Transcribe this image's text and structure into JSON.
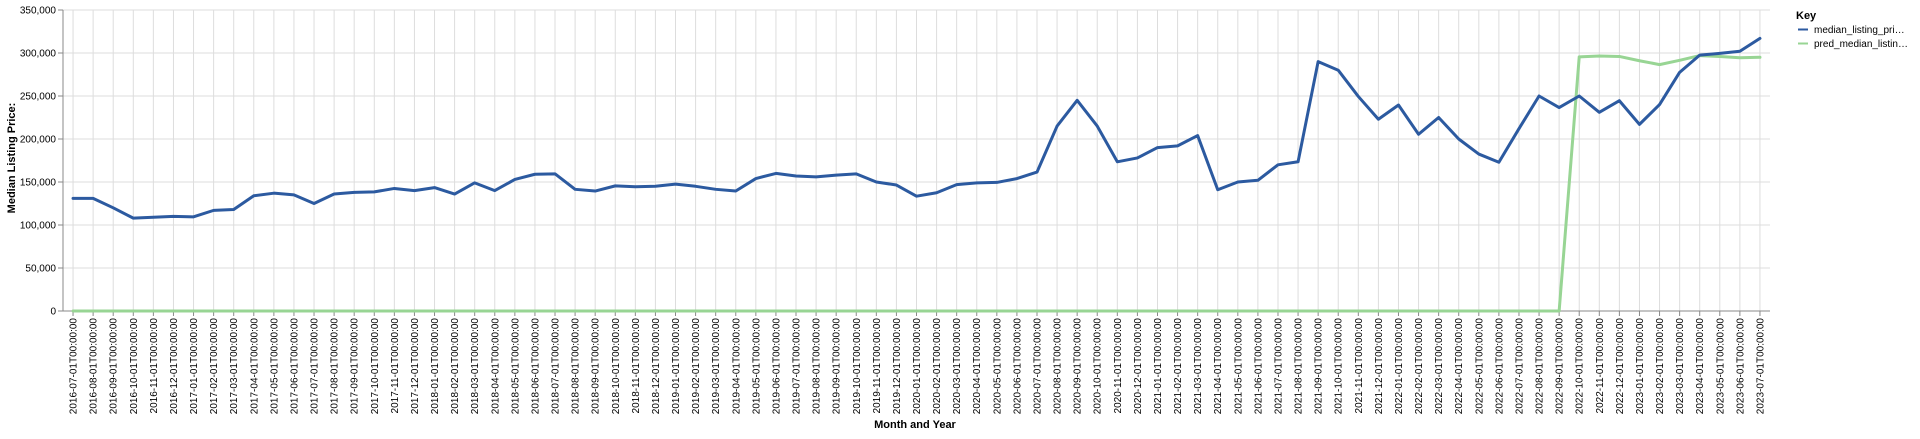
{
  "chart_data": {
    "type": "line",
    "xlabel": "Month and Year",
    "ylabel": "Median Listing Price:",
    "ylim": [
      0,
      350000
    ],
    "yticks": [
      0,
      50000,
      100000,
      150000,
      200000,
      250000,
      300000,
      350000
    ],
    "ytick_labels": [
      "0",
      "50,000",
      "100,000",
      "150,000",
      "200,000",
      "250,000",
      "300,000",
      "350,000"
    ],
    "grid": true,
    "legend": {
      "title": "Key",
      "placement": "right"
    },
    "categories": [
      "2016-07-01T00:00:00",
      "2016-08-01T00:00:00",
      "2016-09-01T00:00:00",
      "2016-10-01T00:00:00",
      "2016-11-01T00:00:00",
      "2016-12-01T00:00:00",
      "2017-01-01T00:00:00",
      "2017-02-01T00:00:00",
      "2017-03-01T00:00:00",
      "2017-04-01T00:00:00",
      "2017-05-01T00:00:00",
      "2017-06-01T00:00:00",
      "2017-07-01T00:00:00",
      "2017-08-01T00:00:00",
      "2017-09-01T00:00:00",
      "2017-10-01T00:00:00",
      "2017-11-01T00:00:00",
      "2017-12-01T00:00:00",
      "2018-01-01T00:00:00",
      "2018-02-01T00:00:00",
      "2018-03-01T00:00:00",
      "2018-04-01T00:00:00",
      "2018-05-01T00:00:00",
      "2018-06-01T00:00:00",
      "2018-07-01T00:00:00",
      "2018-08-01T00:00:00",
      "2018-09-01T00:00:00",
      "2018-10-01T00:00:00",
      "2018-11-01T00:00:00",
      "2018-12-01T00:00:00",
      "2019-01-01T00:00:00",
      "2019-02-01T00:00:00",
      "2019-03-01T00:00:00",
      "2019-04-01T00:00:00",
      "2019-05-01T00:00:00",
      "2019-06-01T00:00:00",
      "2019-07-01T00:00:00",
      "2019-08-01T00:00:00",
      "2019-09-01T00:00:00",
      "2019-10-01T00:00:00",
      "2019-11-01T00:00:00",
      "2019-12-01T00:00:00",
      "2020-01-01T00:00:00",
      "2020-02-01T00:00:00",
      "2020-03-01T00:00:00",
      "2020-04-01T00:00:00",
      "2020-05-01T00:00:00",
      "2020-06-01T00:00:00",
      "2020-07-01T00:00:00",
      "2020-08-01T00:00:00",
      "2020-09-01T00:00:00",
      "2020-10-01T00:00:00",
      "2020-11-01T00:00:00",
      "2020-12-01T00:00:00",
      "2021-01-01T00:00:00",
      "2021-02-01T00:00:00",
      "2021-03-01T00:00:00",
      "2021-04-01T00:00:00",
      "2021-05-01T00:00:00",
      "2021-06-01T00:00:00",
      "2021-07-01T00:00:00",
      "2021-08-01T00:00:00",
      "2021-09-01T00:00:00",
      "2021-10-01T00:00:00",
      "2021-11-01T00:00:00",
      "2021-12-01T00:00:00",
      "2022-01-01T00:00:00",
      "2022-02-01T00:00:00",
      "2022-03-01T00:00:00",
      "2022-04-01T00:00:00",
      "2022-05-01T00:00:00",
      "2022-06-01T00:00:00",
      "2022-07-01T00:00:00",
      "2022-08-01T00:00:00",
      "2022-09-01T00:00:00",
      "2022-10-01T00:00:00",
      "2022-11-01T00:00:00",
      "2022-12-01T00:00:00",
      "2023-01-01T00:00:00",
      "2023-02-01T00:00:00",
      "2023-03-01T00:00:00",
      "2023-04-01T00:00:00",
      "2023-05-01T00:00:00",
      "2023-06-01T00:00:00",
      "2023-07-01T00:00:00"
    ],
    "series": [
      {
        "name": "median_listing_pri…",
        "color": "#2c5aa0",
        "values": [
          131000,
          131000,
          120000,
          108000,
          109000,
          110000,
          109500,
          117000,
          118000,
          134000,
          137000,
          135000,
          125000,
          136000,
          138000,
          138500,
          142500,
          140000,
          143500,
          136000,
          149000,
          140000,
          153000,
          159000,
          159500,
          141500,
          139500,
          145500,
          144500,
          145000,
          147500,
          145000,
          141500,
          139500,
          154000,
          160000,
          157000,
          156000,
          158000,
          159500,
          150000,
          146500,
          133500,
          137500,
          147000,
          149000,
          149500,
          154000,
          161500,
          215000,
          245000,
          215000,
          173500,
          178000,
          190000,
          192000,
          204000,
          141000,
          150000,
          152000,
          170000,
          173500,
          290000,
          280000,
          249500,
          223000,
          239500,
          205500,
          225000,
          200000,
          182500,
          173000,
          212000,
          250000,
          236500,
          250000,
          231000,
          244500,
          217000,
          240000,
          277500,
          297500,
          299500,
          302000,
          317000
        ]
      },
      {
        "name": "pred_median_listin…",
        "color": "#98d594",
        "values": [
          0,
          0,
          0,
          0,
          0,
          0,
          0,
          0,
          0,
          0,
          0,
          0,
          0,
          0,
          0,
          0,
          0,
          0,
          0,
          0,
          0,
          0,
          0,
          0,
          0,
          0,
          0,
          0,
          0,
          0,
          0,
          0,
          0,
          0,
          0,
          0,
          0,
          0,
          0,
          0,
          0,
          0,
          0,
          0,
          0,
          0,
          0,
          0,
          0,
          0,
          0,
          0,
          0,
          0,
          0,
          0,
          0,
          0,
          0,
          0,
          0,
          0,
          0,
          0,
          0,
          0,
          0,
          0,
          0,
          0,
          0,
          0,
          0,
          0,
          0,
          295500,
          296500,
          296000,
          291000,
          286500,
          291500,
          297000,
          296000,
          294500,
          295000
        ]
      }
    ]
  }
}
